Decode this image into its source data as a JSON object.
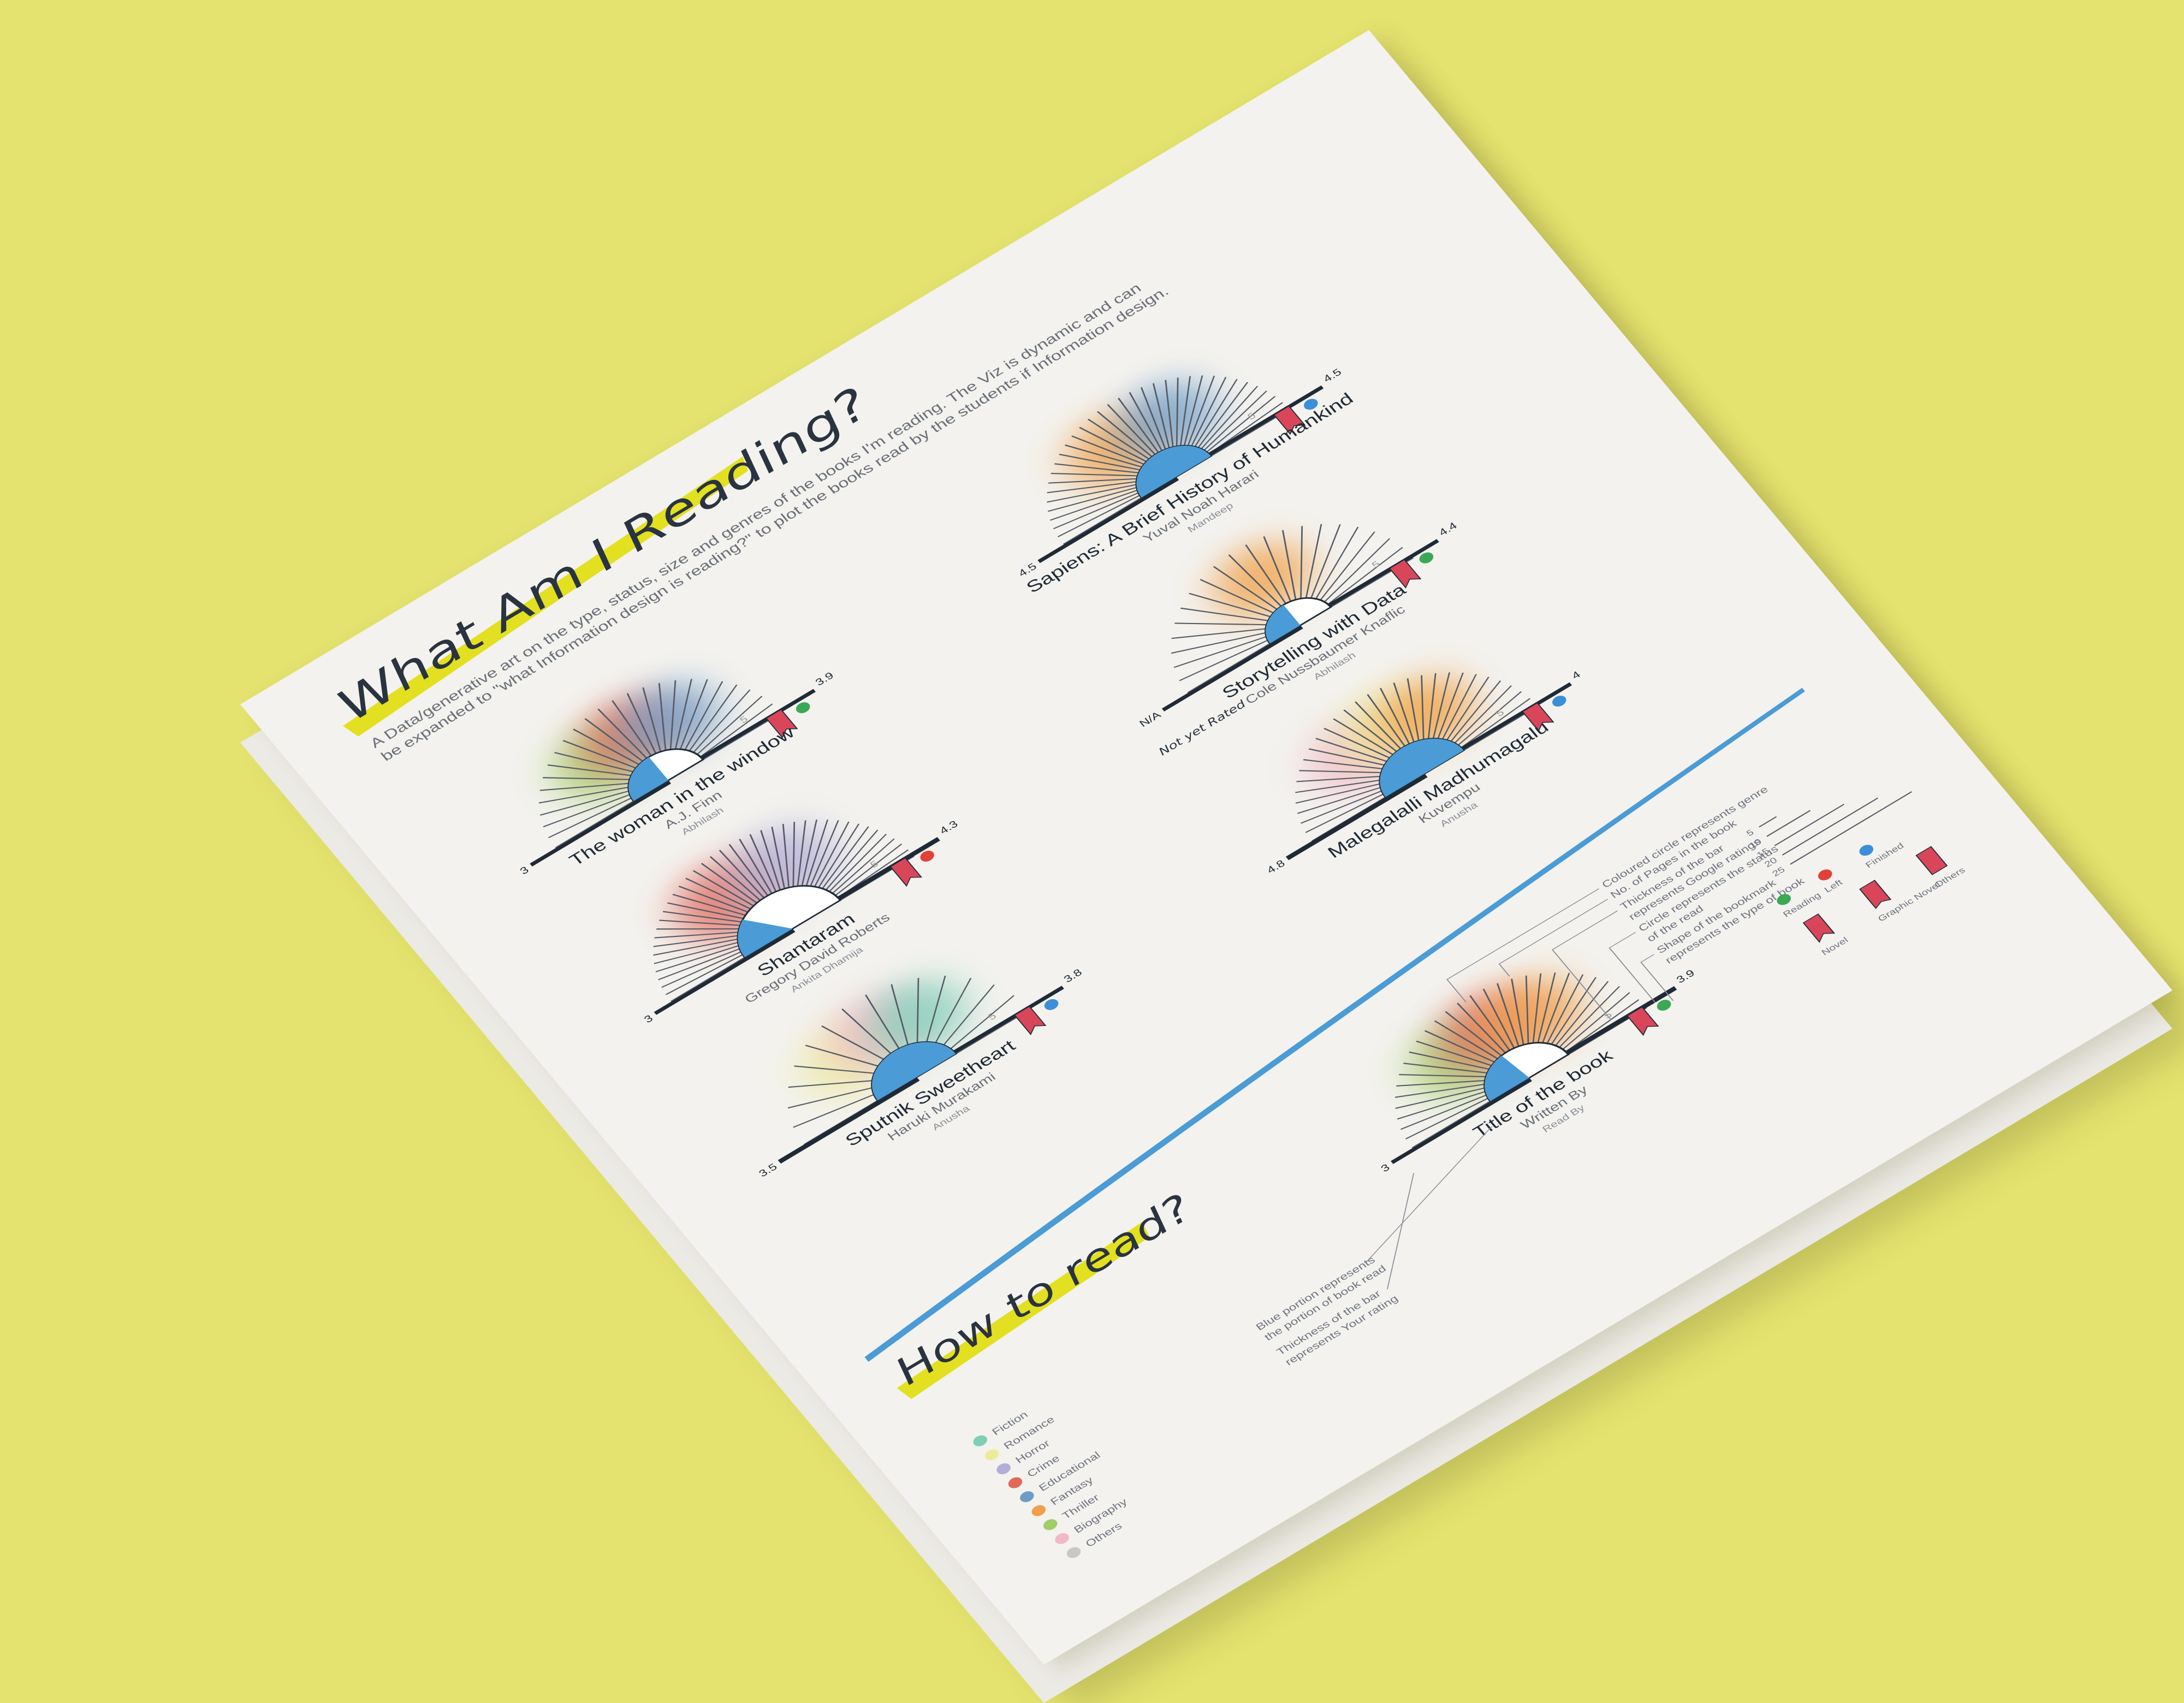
{
  "header": {
    "title": "What Am I Reading?",
    "subtitle_line1": "A Data/generative art on the type, status, size and genres of the books I'm reading. The Viz is dynamic and can",
    "subtitle_line2": "be expanded to \"what Information design is reading?\" to plot the books read by the students if Information design."
  },
  "colors": {
    "background": "#e5e36f",
    "paper": "#f3f2ee",
    "bar": "#1f2a36",
    "blue": "#4a9bd6",
    "bookmark": "#d9465a",
    "highlight": "#e2e020",
    "reading": "#3aa855",
    "left": "#e0423a",
    "finished": "#3b8fd8"
  },
  "books": [
    {
      "title": "The woman in the window",
      "author": "A.J. Finn",
      "reader": "Abhilash",
      "start_label": "3",
      "end_label": "3.9",
      "max_label": "5",
      "status": "reading",
      "read_fraction": 0.5,
      "bookmark_type": "novel",
      "genres": [
        "Thriller",
        "Crime",
        "Educational"
      ]
    },
    {
      "title": "Sapiens: A Brief History of Humankind",
      "author": "Yuval Noah Harari",
      "reader": "Mandeep",
      "start_label": "4.5",
      "end_label": "4.5",
      "max_label": "5",
      "status": "finished",
      "read_fraction": 1.0,
      "bookmark_type": "novel",
      "genres": [
        "Fantasy",
        "Educational"
      ]
    },
    {
      "title": "Storytelling with Data",
      "author": "Cole Nussbaumer Knaflic",
      "reader": "Abhilash",
      "start_label": "N/A",
      "end_label": "4.4",
      "max_label": "5",
      "status": "reading",
      "read_fraction": 0.5,
      "bookmark_type": "novel",
      "genres": [
        "Fantasy"
      ],
      "annotation": "Not yet Rated"
    },
    {
      "title": "Shantaram",
      "author": "Gregory David Roberts",
      "reader": "Ankita Dhamija",
      "start_label": "3",
      "end_label": "4.3",
      "max_label": "5",
      "status": "left",
      "read_fraction": 0.3,
      "bookmark_type": "novel",
      "genres": [
        "Crime",
        "Horror"
      ]
    },
    {
      "title": "Malegalalli Madhumagalu",
      "author": "Kuvempu",
      "reader": "Anusha",
      "start_label": "4.8",
      "end_label": "4",
      "max_label": "5",
      "status": "finished",
      "read_fraction": 1.0,
      "bookmark_type": "novel",
      "genres": [
        "Biography",
        "Romance",
        "Fantasy"
      ]
    },
    {
      "title": "Sputnik Sweetheart",
      "author": "Haruki Murakami",
      "reader": "Anusha",
      "start_label": "3.5",
      "end_label": "3.8",
      "max_label": "5",
      "status": "finished",
      "read_fraction": 1.0,
      "bookmark_type": "novel",
      "genres": [
        "Romance",
        "Biography",
        "Fiction"
      ]
    }
  ],
  "how_to": {
    "title": "How to read?",
    "sample": {
      "title": "Title of the book",
      "author": "Written By",
      "reader": "Read By",
      "start_label": "3",
      "end_label": "3.9",
      "max_label": "5"
    },
    "annotations": [
      "Coloured circle represents genre",
      "No. of Pages in the book",
      "Thickness of the bar",
      "represents Google ratings",
      "Circle represents the status",
      "of the read",
      "Shape of the bookmark",
      "represents the type of book",
      "Blue portion represents",
      "the portion of book read",
      "Thickness of the bar",
      "represents Your rating"
    ],
    "genres": [
      {
        "label": "Fiction",
        "color": "#7fcfb8"
      },
      {
        "label": "Romance",
        "color": "#eceb9c"
      },
      {
        "label": "Horror",
        "color": "#b4aed6"
      },
      {
        "label": "Crime",
        "color": "#e2685a"
      },
      {
        "label": "Educational",
        "color": "#6f9cc7"
      },
      {
        "label": "Fantasy",
        "color": "#f0a04a"
      },
      {
        "label": "Thriller",
        "color": "#a3cd67"
      },
      {
        "label": "Biography",
        "color": "#f2b8c9"
      },
      {
        "label": "Others",
        "color": "#c8c8c8"
      }
    ],
    "status_legend": [
      "Reading",
      "Left",
      "Finished"
    ],
    "type_legend": [
      "Novel",
      "Graphic Novel",
      "Others"
    ],
    "pages_legend": [
      "5",
      "10",
      "15",
      "20",
      "25"
    ]
  }
}
